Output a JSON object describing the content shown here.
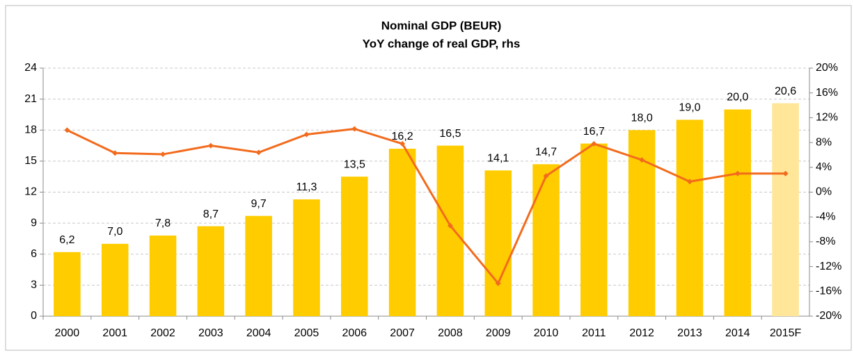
{
  "chart_data": {
    "type": "bar_line",
    "title": "Nominal GDP (BEUR)",
    "subtitle": "YoY change of real GDP, rhs",
    "categories": [
      "2000",
      "2001",
      "2002",
      "2003",
      "2004",
      "2005",
      "2006",
      "2007",
      "2008",
      "2009",
      "2010",
      "2011",
      "2012",
      "2013",
      "2014",
      "2015F"
    ],
    "series": [
      {
        "type": "bar",
        "color": "#ffcc00",
        "colors": [
          "#ffcc00",
          "#ffcc00",
          "#ffcc00",
          "#ffcc00",
          "#ffcc00",
          "#ffcc00",
          "#ffcc00",
          "#ffcc00",
          "#ffcc00",
          "#ffcc00",
          "#ffcc00",
          "#ffcc00",
          "#ffcc00",
          "#ffcc00",
          "#ffcc00",
          "#ffe699"
        ],
        "values": [
          6.2,
          7.0,
          7.8,
          8.7,
          9.7,
          11.3,
          13.5,
          16.2,
          16.5,
          14.1,
          14.7,
          16.7,
          18.0,
          19.0,
          20.0,
          20.6
        ],
        "value_labels": [
          "6,2",
          "7,0",
          "7,8",
          "8,7",
          "9,7",
          "11,3",
          "13,5",
          "16,2",
          "16,5",
          "14,1",
          "14,7",
          "16,7",
          "18,0",
          "19,0",
          "20,0",
          "20,6"
        ]
      },
      {
        "type": "line",
        "axis": "y2",
        "color": "#f26b1d",
        "values": [
          10.0,
          6.3,
          6.1,
          7.5,
          6.4,
          9.3,
          10.2,
          7.8,
          -5.4,
          -14.7,
          2.6,
          7.8,
          5.2,
          1.7,
          3.0,
          3.0
        ]
      }
    ],
    "ylim": [
      0,
      24
    ],
    "yticks": [
      0,
      3,
      6,
      9,
      12,
      15,
      18,
      21,
      24
    ],
    "y2lim": [
      -20,
      20
    ],
    "y2ticks": [
      {
        "value": -20,
        "label": "-20%"
      },
      {
        "value": -16,
        "label": "-16%"
      },
      {
        "value": -12,
        "label": "-12%"
      },
      {
        "value": -8,
        "label": "-8%"
      },
      {
        "value": -4,
        "label": "-4%"
      },
      {
        "value": 0,
        "label": "0%"
      },
      {
        "value": 4,
        "label": "4%"
      },
      {
        "value": 8,
        "label": "8%"
      },
      {
        "value": 12,
        "label": "12%"
      },
      {
        "value": 16,
        "label": "16%"
      },
      {
        "value": 20,
        "label": "20%"
      }
    ],
    "grid": true
  }
}
